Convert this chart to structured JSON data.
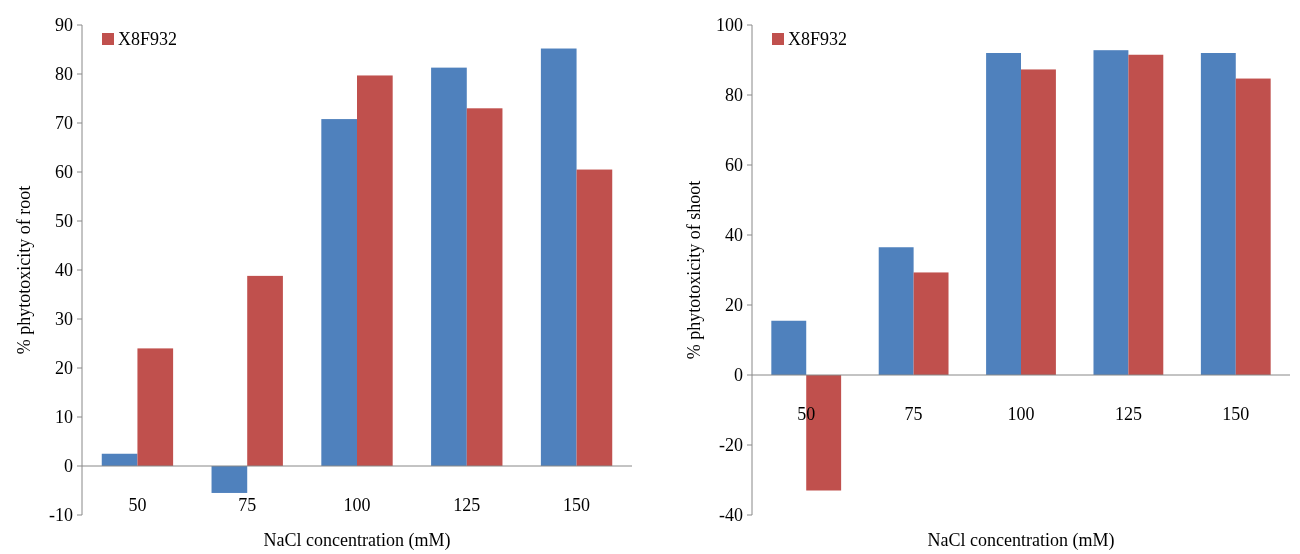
{
  "chart_data": [
    {
      "type": "bar",
      "xlabel": "NaCl concentration (mM)",
      "ylabel": "% phytotoxicity of root",
      "categories": [
        "50",
        "75",
        "100",
        "125",
        "150"
      ],
      "series": [
        {
          "color": "#4f81bd",
          "values": [
            2.5,
            -5.5,
            70.8,
            81.3,
            85.2
          ]
        },
        {
          "name": "X8F932",
          "color": "#c0504d",
          "values": [
            24,
            38.8,
            79.7,
            73,
            60.5
          ]
        }
      ],
      "ylim": [
        -10,
        90
      ],
      "yticks": [
        -10,
        0,
        10,
        20,
        30,
        40,
        50,
        60,
        70,
        80,
        90
      ],
      "legend": "top left",
      "grid": false
    },
    {
      "type": "bar",
      "xlabel": "NaCl concentration (mM)",
      "ylabel": "% phytotoxicity of shoot",
      "categories": [
        "50",
        "75",
        "100",
        "125",
        "150"
      ],
      "series": [
        {
          "color": "#4f81bd",
          "values": [
            15.5,
            36.5,
            92,
            92.8,
            92
          ]
        },
        {
          "name": "X8F932",
          "color": "#c0504d",
          "values": [
            -33,
            29.3,
            87.3,
            91.5,
            84.7
          ]
        }
      ],
      "ylim": [
        -40,
        100
      ],
      "yticks": [
        -40,
        -20,
        0,
        20,
        40,
        60,
        80,
        100
      ],
      "legend": "top left",
      "grid": false
    }
  ]
}
